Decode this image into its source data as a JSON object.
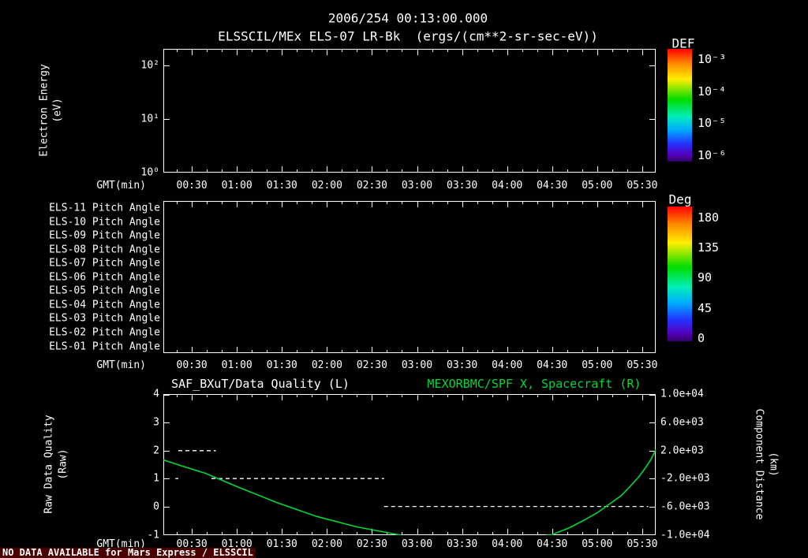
{
  "colors": {
    "background": "#000000",
    "foreground": "#ffffff",
    "accent_green": "#00d833",
    "no_data_bg": "#4a0000",
    "rainbow_stops": [
      "#ff0000 0%",
      "#ff8800 13%",
      "#ffee00 27%",
      "#00dd00 45%",
      "#00eebb 60%",
      "#00aaff 72%",
      "#2233ff 84%",
      "#5500bb 94%",
      "#330066 100%"
    ]
  },
  "header": {
    "timestamp": "2006/254 00:13:00.000",
    "title": "ELSSCIL/MEx ELS-07 LR-Bk  (ergs/(cm**2-sr-sec-eV))"
  },
  "time_axis": {
    "label": "GMT(min)",
    "ticks": [
      "00:30",
      "01:00",
      "01:30",
      "02:00",
      "02:30",
      "03:00",
      "03:30",
      "04:00",
      "04:30",
      "05:00",
      "05:30"
    ],
    "start_min": 11,
    "end_min": 339
  },
  "spectrogram_panel": {
    "ylabel": [
      "Electron Energy",
      "(eV)"
    ],
    "yticks": [
      {
        "label": "10²",
        "value": 100
      },
      {
        "label": "10¹",
        "value": 10
      },
      {
        "label": "10⁰",
        "value": 1
      }
    ],
    "colorbar": {
      "title": "DEF",
      "ticks": [
        "10⁻³",
        "10⁻⁴",
        "10⁻⁵",
        "10⁻⁶"
      ]
    }
  },
  "pitch_panel": {
    "row_labels": [
      "ELS-11 Pitch Angle",
      "ELS-10 Pitch Angle",
      "ELS-09 Pitch Angle",
      "ELS-08 Pitch Angle",
      "ELS-07 Pitch Angle",
      "ELS-06 Pitch Angle",
      "ELS-05 Pitch Angle",
      "ELS-04 Pitch Angle",
      "ELS-03 Pitch Angle",
      "ELS-02 Pitch Angle",
      "ELS-01 Pitch Angle"
    ],
    "colorbar": {
      "title": "Deg",
      "ticks": [
        "180",
        "135",
        "90",
        "45",
        "0"
      ]
    }
  },
  "quality_panel": {
    "title_left": "SAF_BXuT/Data Quality (L)",
    "title_right": "MEXORBMC/SPF X, Spacecraft (R)",
    "ylabel_left": [
      "Raw Data Quality",
      "(Raw)"
    ],
    "ylabel_right": [
      "Component Distance",
      "(km)"
    ],
    "yticks_left": [
      "4",
      "3",
      "2",
      "1",
      "0",
      "-1"
    ],
    "yticks_right": [
      "1.0e+04",
      "6.0e+03",
      "2.0e+03",
      "-2.0e+03",
      "-6.0e+03",
      "-1.0e+04"
    ]
  },
  "status_bar": {
    "no_data_text": "NO DATA AVAILABLE for Mars Express / ELSSCIL"
  },
  "chart_data": [
    {
      "type": "heatmap",
      "title": "ELSSCIL/MEx ELS-07 LR-Bk",
      "units": "ergs/(cm**2-sr-sec-eV)",
      "xlabel": "GMT(min)",
      "x_range_min": [
        11,
        339
      ],
      "xticks": [
        "00:30",
        "01:00",
        "01:30",
        "02:00",
        "02:30",
        "03:00",
        "03:30",
        "04:00",
        "04:30",
        "05:00",
        "05:30"
      ],
      "ylabel": "Electron Energy (eV)",
      "yscale": "log",
      "ylim": [
        1,
        200
      ],
      "colorbar": {
        "label": "DEF",
        "scale": "log",
        "ticks": [
          0.001,
          0.0001,
          1e-05,
          1e-06
        ]
      },
      "values": [],
      "note": "panel empty - no data available"
    },
    {
      "type": "heatmap",
      "rows": [
        "ELS-11",
        "ELS-10",
        "ELS-09",
        "ELS-08",
        "ELS-07",
        "ELS-06",
        "ELS-05",
        "ELS-04",
        "ELS-03",
        "ELS-02",
        "ELS-01"
      ],
      "ylabel": "Pitch Angle",
      "xlabel": "GMT(min)",
      "colorbar": {
        "label": "Deg",
        "ticks": [
          180,
          135,
          90,
          45,
          0
        ]
      },
      "values": [],
      "note": "panel empty - no data available"
    },
    {
      "type": "line",
      "xlabel": "GMT(min)",
      "x_range_min": [
        11,
        339
      ],
      "ylim_left": [
        -1,
        4
      ],
      "ylim_right": [
        -10000,
        10000
      ],
      "series": [
        {
          "name": "SAF_BXuT/Data Quality (L)",
          "axis": "left",
          "style": "dashed",
          "color": "#ffffff",
          "segments": [
            {
              "t_start": 19,
              "t_end": 21,
              "value": 1
            },
            {
              "t_start": 21,
              "t_end": 46,
              "value": 2
            },
            {
              "t_start": 43,
              "t_end": 158,
              "value": 1
            },
            {
              "t_start": 158,
              "t_end": 334,
              "value": 0
            }
          ]
        },
        {
          "name": "MEXORBMC/SPF X, Spacecraft (R)",
          "axis": "right",
          "style": "solid",
          "color": "#00d833",
          "t_min": [
            11,
            25,
            39,
            60,
            86,
            113,
            139,
            155,
            170,
            185,
            210,
            235,
            255,
            270,
            281,
            291,
            300,
            308,
            316,
            322,
            328,
            332,
            336,
            339
          ],
          "x_km": [
            675,
            -300,
            -1240,
            -3150,
            -5390,
            -7420,
            -8880,
            -9550,
            -10150,
            -10600,
            -10950,
            -10850,
            -10500,
            -10050,
            -9100,
            -8000,
            -6900,
            -5700,
            -4450,
            -3100,
            -1685,
            -500,
            790,
            2140
          ]
        }
      ]
    }
  ]
}
